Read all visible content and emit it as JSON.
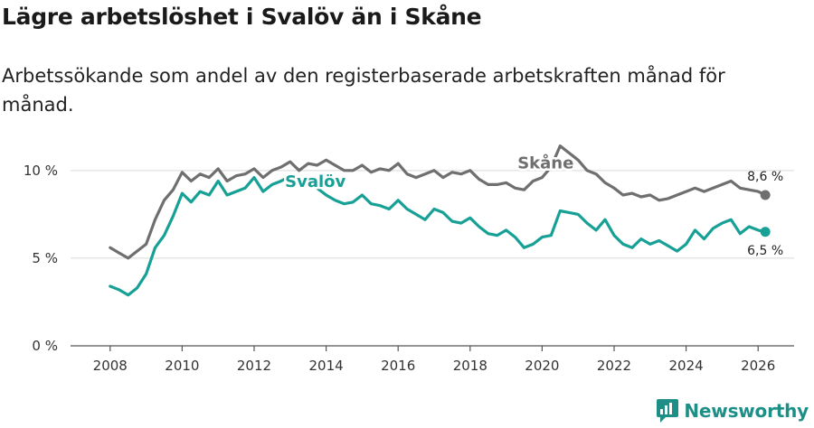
{
  "header": {
    "title": "Lägre arbetslöshet i Svalöv än i Skåne",
    "subtitle": "Arbetssökande som andel av den registerbaserade arbetskraften månad för månad."
  },
  "brand": {
    "name": "Newsworthy",
    "icon": "newsworthy-logo-icon"
  },
  "colors": {
    "skane": "#6f6f6f",
    "svalov": "#17a096",
    "grid": "#d9d9d9",
    "axis": "#555555"
  },
  "chart_data": {
    "type": "line",
    "title": "Lägre arbetslöshet i Svalöv än i Skåne",
    "subtitle": "Arbetssökande som andel av den registerbaserade arbetskraften månad för månad.",
    "xlabel": "",
    "ylabel": "",
    "ylim": [
      0,
      12
    ],
    "xlim": [
      2006.9,
      2027.0
    ],
    "grid": true,
    "yticks": [
      {
        "value": 0,
        "label": "0 %"
      },
      {
        "value": 5,
        "label": "5 %"
      },
      {
        "value": 10,
        "label": "10 %"
      }
    ],
    "xticks": [
      {
        "value": 2008,
        "label": "2008"
      },
      {
        "value": 2010,
        "label": "2010"
      },
      {
        "value": 2012,
        "label": "2012"
      },
      {
        "value": 2014,
        "label": "2014"
      },
      {
        "value": 2016,
        "label": "2016"
      },
      {
        "value": 2018,
        "label": "2018"
      },
      {
        "value": 2020,
        "label": "2020"
      },
      {
        "value": 2022,
        "label": "2022"
      },
      {
        "value": 2024,
        "label": "2024"
      },
      {
        "value": 2026,
        "label": "2026"
      }
    ],
    "series": [
      {
        "name": "Skåne",
        "label": "Skåne",
        "end_label": "8,6 %",
        "x": [
          2008.0,
          2008.25,
          2008.5,
          2008.75,
          2009.0,
          2009.25,
          2009.5,
          2009.75,
          2010.0,
          2010.25,
          2010.5,
          2010.75,
          2011.0,
          2011.25,
          2011.5,
          2011.75,
          2012.0,
          2012.25,
          2012.5,
          2012.75,
          2013.0,
          2013.25,
          2013.5,
          2013.75,
          2014.0,
          2014.25,
          2014.5,
          2014.75,
          2015.0,
          2015.25,
          2015.5,
          2015.75,
          2016.0,
          2016.25,
          2016.5,
          2016.75,
          2017.0,
          2017.25,
          2017.5,
          2017.75,
          2018.0,
          2018.25,
          2018.5,
          2018.75,
          2019.0,
          2019.25,
          2019.5,
          2019.75,
          2020.0,
          2020.25,
          2020.5,
          2020.75,
          2021.0,
          2021.25,
          2021.5,
          2021.75,
          2022.0,
          2022.25,
          2022.5,
          2022.75,
          2023.0,
          2023.25,
          2023.5,
          2023.75,
          2024.0,
          2024.25,
          2024.5,
          2024.75,
          2025.0,
          2025.25,
          2025.5,
          2025.75,
          2026.0,
          2026.2
        ],
        "values": [
          5.6,
          5.3,
          5.0,
          5.4,
          5.8,
          7.2,
          8.3,
          8.9,
          9.9,
          9.4,
          9.8,
          9.6,
          10.1,
          9.4,
          9.7,
          9.8,
          10.1,
          9.6,
          10.0,
          10.2,
          10.5,
          10.0,
          10.4,
          10.3,
          10.6,
          10.3,
          10.0,
          10.0,
          10.3,
          9.9,
          10.1,
          10.0,
          10.4,
          9.8,
          9.6,
          9.8,
          10.0,
          9.6,
          9.9,
          9.8,
          10.0,
          9.5,
          9.2,
          9.2,
          9.3,
          9.0,
          8.9,
          9.4,
          9.6,
          10.2,
          11.4,
          11.0,
          10.6,
          10.0,
          9.8,
          9.3,
          9.0,
          8.6,
          8.7,
          8.5,
          8.6,
          8.3,
          8.4,
          8.6,
          8.8,
          9.0,
          8.8,
          9.0,
          9.2,
          9.4,
          9.0,
          8.9,
          8.8,
          8.6
        ]
      },
      {
        "name": "Svalöv",
        "label": "Svalöv",
        "end_label": "6,5 %",
        "x": [
          2008.0,
          2008.25,
          2008.5,
          2008.75,
          2009.0,
          2009.25,
          2009.5,
          2009.75,
          2010.0,
          2010.25,
          2010.5,
          2010.75,
          2011.0,
          2011.25,
          2011.5,
          2011.75,
          2012.0,
          2012.25,
          2012.5,
          2012.75,
          2013.0,
          2013.25,
          2013.5,
          2013.75,
          2014.0,
          2014.25,
          2014.5,
          2014.75,
          2015.0,
          2015.25,
          2015.5,
          2015.75,
          2016.0,
          2016.25,
          2016.5,
          2016.75,
          2017.0,
          2017.25,
          2017.5,
          2017.75,
          2018.0,
          2018.25,
          2018.5,
          2018.75,
          2019.0,
          2019.25,
          2019.5,
          2019.75,
          2020.0,
          2020.25,
          2020.5,
          2020.75,
          2021.0,
          2021.25,
          2021.5,
          2021.75,
          2022.0,
          2022.25,
          2022.5,
          2022.75,
          2023.0,
          2023.25,
          2023.5,
          2023.75,
          2024.0,
          2024.25,
          2024.5,
          2024.75,
          2025.0,
          2025.25,
          2025.5,
          2025.75,
          2026.0,
          2026.2
        ],
        "values": [
          3.4,
          3.2,
          2.9,
          3.3,
          4.1,
          5.6,
          6.3,
          7.4,
          8.7,
          8.2,
          8.8,
          8.6,
          9.4,
          8.6,
          8.8,
          9.0,
          9.6,
          8.8,
          9.2,
          9.4,
          9.7,
          9.3,
          9.6,
          9.0,
          8.6,
          8.3,
          8.1,
          8.2,
          8.6,
          8.1,
          8.0,
          7.8,
          8.3,
          7.8,
          7.5,
          7.2,
          7.8,
          7.6,
          7.1,
          7.0,
          7.3,
          6.8,
          6.4,
          6.3,
          6.6,
          6.2,
          5.6,
          5.8,
          6.2,
          6.3,
          7.7,
          7.6,
          7.5,
          7.0,
          6.6,
          7.2,
          6.3,
          5.8,
          5.6,
          6.1,
          5.8,
          6.0,
          5.7,
          5.4,
          5.8,
          6.6,
          6.1,
          6.7,
          7.0,
          7.2,
          6.4,
          6.8,
          6.6,
          6.5
        ]
      }
    ]
  }
}
